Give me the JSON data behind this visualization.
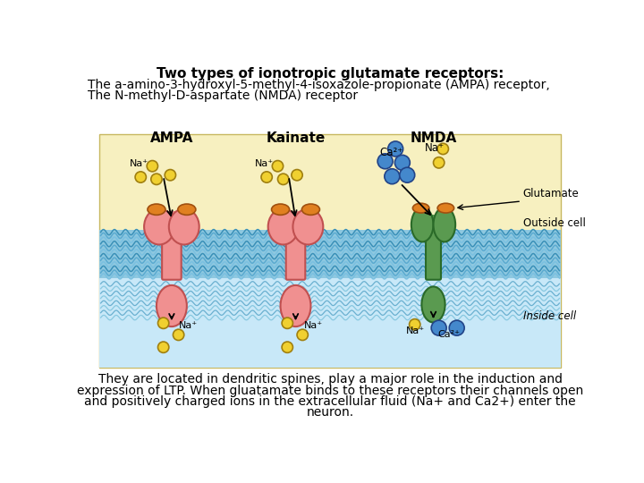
{
  "bg_color": "#ffffff",
  "diagram_bg": "#f7f0c0",
  "membrane_top_color": "#8ec8e0",
  "membrane_bot_color": "#a8d8ee",
  "inside_color": "#c8e8f8",
  "ampa_color": "#f09090",
  "ampa_edge": "#c05050",
  "ampa_cap_color": "#e08020",
  "ampa_cap_edge": "#a05010",
  "nmda_color": "#5a9a50",
  "nmda_edge": "#2a6a28",
  "nmda_cap_color": "#e08020",
  "nmda_cap_edge": "#a05010",
  "na_ion_color": "#f0d030",
  "na_ion_edge": "#a08010",
  "ca_ion_color": "#4488cc",
  "ca_ion_edge": "#224488",
  "title_line1": "Two types of ionotropic glutamate receptors:",
  "title_line2": "The a-amino-3-hydroxyl-5-methyl-4-isoxazole-propionate (AMPA) receptor,",
  "title_line3": "The N-methyl-D-aspartate (NMDA) receptor",
  "bottom_text_lines": [
    "They are located in dendritic spines, play a major role in the induction and",
    "expression of LTP. When gluatamate binds to these receptors their channels open",
    "and positively charged ions in the extracellular fluid (Na+ and Ca2+) enter the",
    "neuron."
  ],
  "label_ampa": "AMPA",
  "label_kainate": "Kainate",
  "label_nmda": "NMDA",
  "label_glutamate": "Glutamate",
  "label_outside": "Outside cell",
  "label_inside": "Inside cell",
  "label_na": "Na⁺",
  "label_ca": "Ca²⁺",
  "wave_colors": [
    "#3a90b8",
    "#5aaad0",
    "#7ac0e0",
    "#3a90b8",
    "#5aaad0",
    "#7ac0e0",
    "#3a90b8",
    "#5aaad0",
    "#7ac0e0",
    "#3a90b8",
    "#5aaad0",
    "#7ac0e0"
  ],
  "inside_wave_colors": [
    "#6ab0d0",
    "#88c8e0",
    "#6ab0d0",
    "#88c8e0",
    "#6ab0d0",
    "#88c8e0",
    "#6ab0d0",
    "#88c8e0"
  ]
}
